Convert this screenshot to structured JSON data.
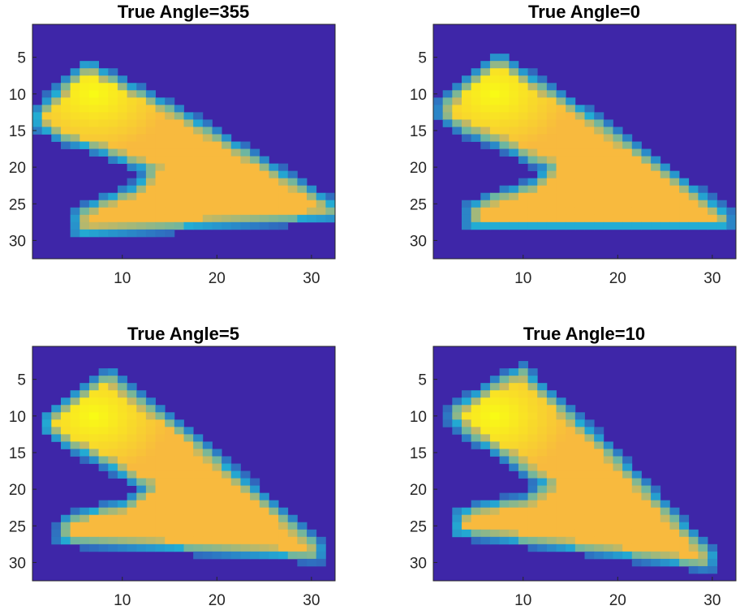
{
  "chart_data": [
    {
      "type": "heatmap",
      "title": "True Angle=355",
      "xticks": [
        10,
        20,
        30
      ],
      "yticks": [
        5,
        10,
        15,
        20,
        25,
        30
      ],
      "xlim": [
        0.5,
        32.5
      ],
      "ylim": [
        0.5,
        32.5
      ],
      "y_reversed": true,
      "shape": {
        "rot": -5,
        "dx": 0,
        "dy": 0
      },
      "colors": {
        "background": "#3e26a8",
        "edge": "#21b4d6",
        "body": "#f8ba3e",
        "hot": "#f9fb15"
      }
    },
    {
      "type": "heatmap",
      "title": "True Angle=0",
      "xticks": [
        10,
        20,
        30
      ],
      "yticks": [
        5,
        10,
        15,
        20,
        25,
        30
      ],
      "xlim": [
        0.5,
        32.5
      ],
      "ylim": [
        0.5,
        32.5
      ],
      "y_reversed": true,
      "shape": {
        "rot": 0,
        "dx": 0,
        "dy": 0
      },
      "colors": {
        "background": "#3e26a8",
        "edge": "#21b4d6",
        "body": "#f8ba3e",
        "hot": "#f9fb15"
      }
    },
    {
      "type": "heatmap",
      "title": "True Angle=5",
      "xticks": [
        10,
        20,
        30
      ],
      "yticks": [
        5,
        10,
        15,
        20,
        25,
        30
      ],
      "xlim": [
        0.5,
        32.5
      ],
      "ylim": [
        0.5,
        32.5
      ],
      "y_reversed": true,
      "shape": {
        "rot": 5,
        "dx": 0,
        "dy": 0
      },
      "colors": {
        "background": "#3e26a8",
        "edge": "#21b4d6",
        "body": "#f8ba3e",
        "hot": "#f9fb15"
      }
    },
    {
      "type": "heatmap",
      "title": "True Angle=10",
      "xticks": [
        10,
        20,
        30
      ],
      "yticks": [
        5,
        10,
        15,
        20,
        25,
        30
      ],
      "xlim": [
        0.5,
        32.5
      ],
      "ylim": [
        0.5,
        32.5
      ],
      "y_reversed": true,
      "shape": {
        "rot": 10,
        "dx": 0,
        "dy": 0
      },
      "colors": {
        "background": "#3e26a8",
        "edge": "#21b4d6",
        "body": "#f8ba3e",
        "hot": "#f9fb15"
      }
    }
  ]
}
